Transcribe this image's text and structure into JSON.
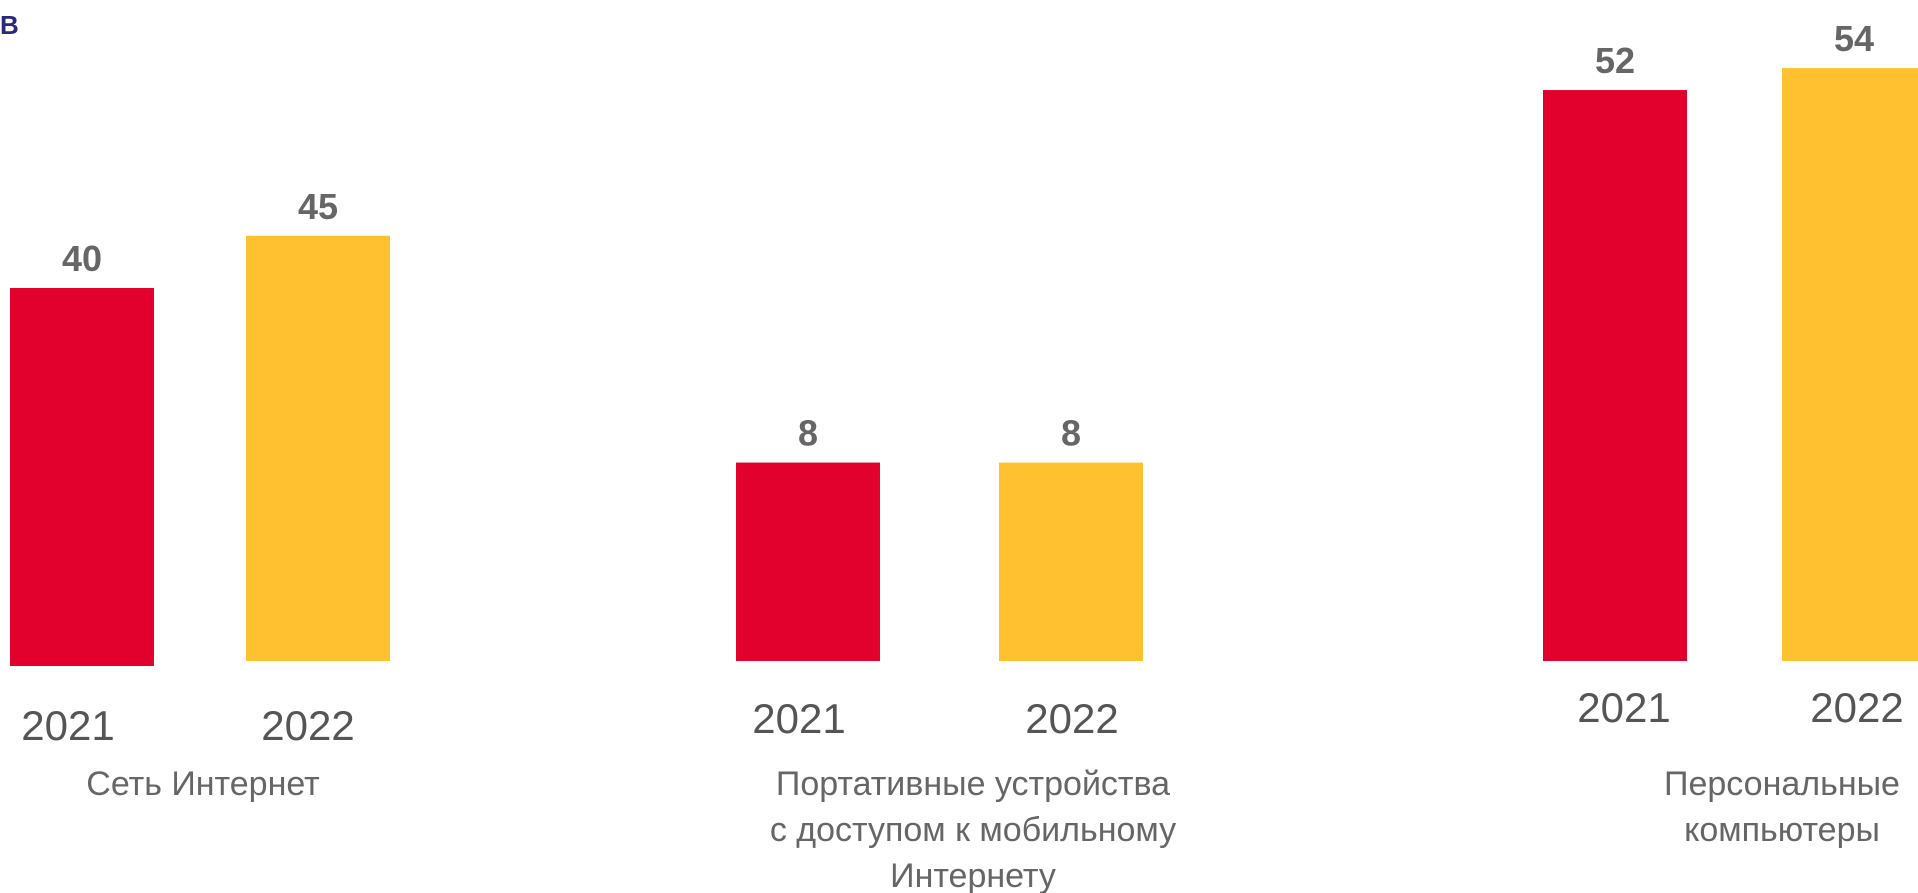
{
  "corner_letter": "В",
  "colors": {
    "y2021": "#e2002d",
    "y2022": "#ffc12f",
    "value_text": "#666666",
    "label_text": "#555555"
  },
  "chart_data": {
    "type": "bar",
    "title": "",
    "xlabel": "",
    "ylabel": "",
    "series_names": [
      "2021",
      "2022"
    ],
    "groups": [
      {
        "category_lines": [
          "Сеть Интернет"
        ],
        "values": [
          40,
          45
        ],
        "value_labels": [
          "40",
          "45"
        ],
        "year_labels": [
          "2021",
          "2022"
        ]
      },
      {
        "category_lines": [
          "Портативные устройства",
          "с доступом к мобильному",
          "Интернету"
        ],
        "values": [
          8,
          8
        ],
        "value_labels": [
          "8",
          "8"
        ],
        "year_labels": [
          "2021",
          "2022"
        ]
      },
      {
        "category_lines": [
          "Персональные",
          "компьютеры"
        ],
        "values": [
          52,
          54
        ],
        "value_labels": [
          "52",
          "54"
        ],
        "year_labels": [
          "2021",
          "2022"
        ]
      }
    ],
    "grid": false,
    "legend": "none"
  }
}
